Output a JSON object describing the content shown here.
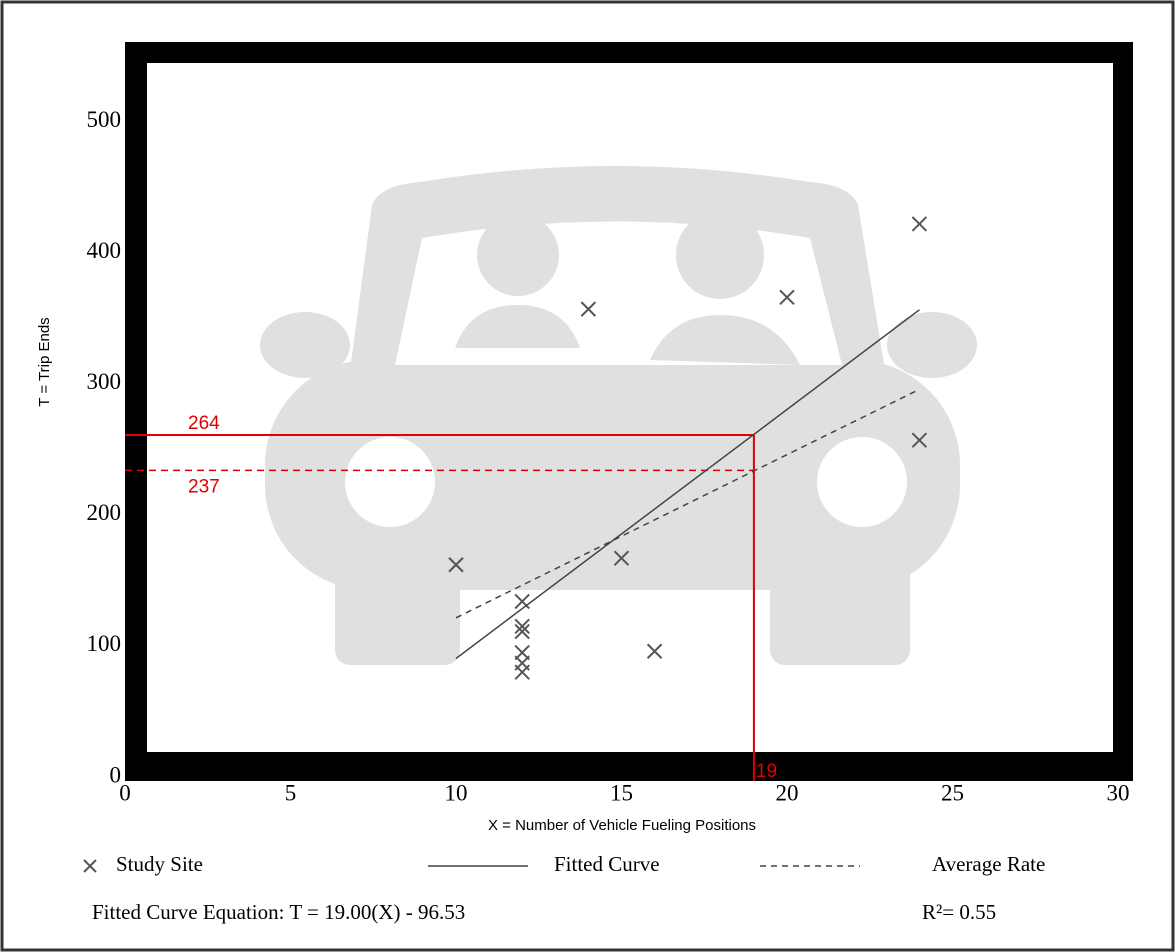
{
  "chart_data": {
    "type": "scatter",
    "x_label": "X = Number of Vehicle Fueling Positions",
    "y_label": "T = Trip Ends",
    "xlim": [
      0,
      30
    ],
    "ylim": [
      0,
      560
    ],
    "xticks": [
      0,
      5,
      10,
      15,
      20,
      25,
      30
    ],
    "yticks": [
      0,
      100,
      200,
      300,
      400,
      500
    ],
    "series": [
      {
        "name": "Study Site",
        "color": "#555555",
        "marker": "x",
        "x": [
          10,
          12,
          12,
          12,
          12,
          12,
          12,
          14,
          15,
          16,
          20,
          24,
          24
        ],
        "values": [
          165,
          137,
          118,
          114,
          98,
          90,
          83,
          360,
          170,
          99,
          369,
          425,
          260
        ]
      },
      {
        "name": "Fitted Curve",
        "color": "#444444",
        "line": "solid",
        "x": [
          10,
          24
        ],
        "values": [
          93.47,
          359.47
        ]
      },
      {
        "name": "Average Rate",
        "color": "#444444",
        "line": "dashed",
        "x": [
          10,
          24
        ],
        "values": [
          124.5,
          298.8
        ]
      }
    ],
    "reference": {
      "x": 19,
      "y_fitted": 264,
      "y_average": 237,
      "color": "#e00000"
    },
    "equation": "Fitted Curve Equation: T = 19.00(X) - 96.53",
    "r_squared": "R²= 0.55"
  }
}
